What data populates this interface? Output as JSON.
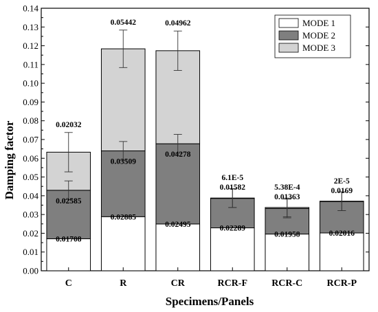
{
  "chart_data": {
    "type": "bar",
    "stacked": true,
    "xlabel": "Specimens/Panels",
    "ylabel": "Damping factor",
    "ylim": [
      0,
      0.14
    ],
    "yticks": [
      "0.00",
      "0.01",
      "0.02",
      "0.03",
      "0.04",
      "0.05",
      "0.06",
      "0.07",
      "0.08",
      "0.09",
      "0.10",
      "0.11",
      "0.12",
      "0.13",
      "0.14"
    ],
    "categories": [
      "C",
      "R",
      "CR",
      "RCR-F",
      "RCR-C",
      "RCR-P"
    ],
    "legend_position": "top-right",
    "series": [
      {
        "name": "MODE 1",
        "color": "#ffffff",
        "values": [
          0.01708,
          0.02885,
          0.02495,
          0.02289,
          0.01958,
          0.02016
        ],
        "labels": [
          "0.01708",
          "0.02885",
          "0.02495",
          "0.02289",
          "0.01958",
          "0.02016"
        ],
        "errors": [
          null,
          null,
          null,
          null,
          null,
          null
        ]
      },
      {
        "name": "MODE 2",
        "color": "#7f7f7f",
        "values": [
          0.02585,
          0.03509,
          0.04278,
          0.01582,
          0.01363,
          0.0169
        ],
        "labels": [
          "0.02585",
          "0.03509",
          "0.04278",
          "0.01582",
          "0.01363",
          "0.0169"
        ],
        "errors": [
          0.005,
          0.005,
          0.005,
          0.005,
          0.005,
          0.005
        ]
      },
      {
        "name": "MODE 3",
        "color": "#d3d3d3",
        "values": [
          0.02032,
          0.05442,
          0.04962,
          6.1e-05,
          0.000538,
          2e-05
        ],
        "labels": [
          "0.02032",
          "0.05442",
          "0.04962",
          "6.1E-5",
          "5.38E-4",
          "2E-5"
        ],
        "errors": [
          0.0105,
          0.01,
          0.0105,
          0.005,
          0.005,
          0.005
        ]
      }
    ]
  }
}
